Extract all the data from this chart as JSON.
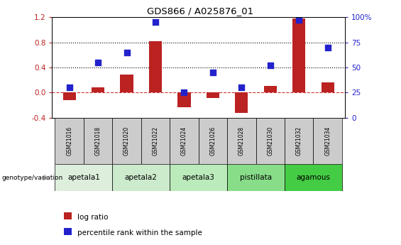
{
  "title": "GDS866 / A025876_01",
  "samples": [
    "GSM21016",
    "GSM21018",
    "GSM21020",
    "GSM21022",
    "GSM21024",
    "GSM21026",
    "GSM21028",
    "GSM21030",
    "GSM21032",
    "GSM21034"
  ],
  "log_ratio": [
    -0.12,
    0.08,
    0.28,
    0.82,
    -0.23,
    -0.09,
    -0.32,
    0.1,
    1.18,
    0.16
  ],
  "percentile_rank": [
    30,
    55,
    65,
    95,
    25,
    45,
    30,
    52,
    97,
    70
  ],
  "ylim_left": [
    -0.4,
    1.2
  ],
  "ylim_right": [
    0,
    100
  ],
  "yticks_left": [
    -0.4,
    0.0,
    0.4,
    0.8,
    1.2
  ],
  "yticks_right": [
    0,
    25,
    50,
    75,
    100
  ],
  "hlines": [
    0.4,
    0.8
  ],
  "bar_color": "#BB2222",
  "dot_color": "#2222CC",
  "zero_line_color": "#CC3333",
  "groups_info": [
    {
      "label": "apetala1",
      "start": 0,
      "end": 1,
      "color": "#DDEEDD"
    },
    {
      "label": "apetala2",
      "start": 2,
      "end": 3,
      "color": "#CCEACC"
    },
    {
      "label": "apetala3",
      "start": 4,
      "end": 5,
      "color": "#BBEABB"
    },
    {
      "label": "pistillata",
      "start": 6,
      "end": 7,
      "color": "#88DD88"
    },
    {
      "label": "agamous",
      "start": 8,
      "end": 9,
      "color": "#44CC44"
    }
  ],
  "sample_box_color": "#CCCCCC",
  "legend_log_ratio": "log ratio",
  "legend_percentile": "percentile rank within the sample",
  "bar_width": 0.45,
  "dot_size": 35
}
